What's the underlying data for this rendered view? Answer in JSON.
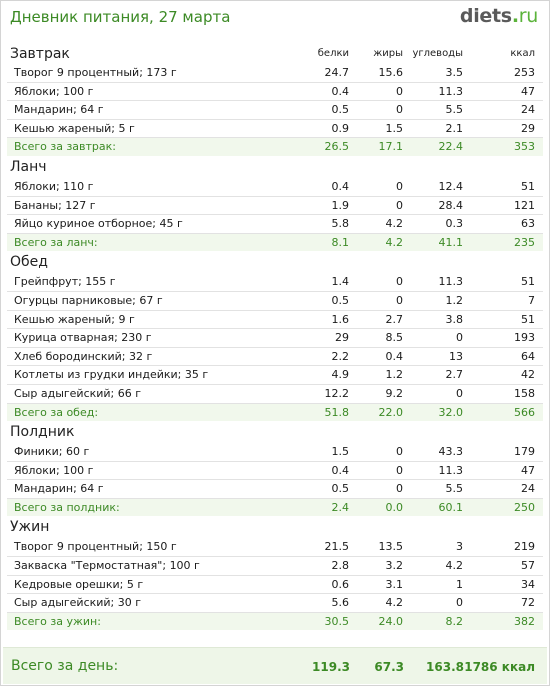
{
  "header": {
    "title": "Дневник питания, 27 марта",
    "logo_main": "diets",
    "logo_dot": ".",
    "logo_tld": "ru"
  },
  "columns": {
    "protein": "белки",
    "fat": "жиры",
    "carbs": "углеводы",
    "kcal": "ккал"
  },
  "meals": [
    {
      "title": "Завтрак",
      "items": [
        {
          "name": "Творог 9 процентный; 173 г",
          "protein": "24.7",
          "fat": "15.6",
          "carbs": "3.5",
          "kcal": "253"
        },
        {
          "name": "Яблоки; 100 г",
          "protein": "0.4",
          "fat": "0",
          "carbs": "11.3",
          "kcal": "47"
        },
        {
          "name": "Мандарин; 64 г",
          "protein": "0.5",
          "fat": "0",
          "carbs": "5.5",
          "kcal": "24"
        },
        {
          "name": "Кешью жареный; 5 г",
          "protein": "0.9",
          "fat": "1.5",
          "carbs": "2.1",
          "kcal": "29"
        }
      ],
      "total": {
        "name": "Всего за завтрак:",
        "protein": "26.5",
        "fat": "17.1",
        "carbs": "22.4",
        "kcal": "353"
      }
    },
    {
      "title": "Ланч",
      "items": [
        {
          "name": "Яблоки; 110 г",
          "protein": "0.4",
          "fat": "0",
          "carbs": "12.4",
          "kcal": "51"
        },
        {
          "name": "Бананы; 127 г",
          "protein": "1.9",
          "fat": "0",
          "carbs": "28.4",
          "kcal": "121"
        },
        {
          "name": "Яйцо куриное отборное; 45 г",
          "protein": "5.8",
          "fat": "4.2",
          "carbs": "0.3",
          "kcal": "63"
        }
      ],
      "total": {
        "name": "Всего за ланч:",
        "protein": "8.1",
        "fat": "4.2",
        "carbs": "41.1",
        "kcal": "235"
      }
    },
    {
      "title": "Обед",
      "items": [
        {
          "name": "Грейпфрут; 155 г",
          "protein": "1.4",
          "fat": "0",
          "carbs": "11.3",
          "kcal": "51"
        },
        {
          "name": "Огурцы парниковые; 67 г",
          "protein": "0.5",
          "fat": "0",
          "carbs": "1.2",
          "kcal": "7"
        },
        {
          "name": "Кешью жареный; 9 г",
          "protein": "1.6",
          "fat": "2.7",
          "carbs": "3.8",
          "kcal": "51"
        },
        {
          "name": "Курица отварная; 230 г",
          "protein": "29",
          "fat": "8.5",
          "carbs": "0",
          "kcal": "193"
        },
        {
          "name": "Хлеб бородинский; 32 г",
          "protein": "2.2",
          "fat": "0.4",
          "carbs": "13",
          "kcal": "64"
        },
        {
          "name": "Котлеты из грудки индейки; 35 г",
          "protein": "4.9",
          "fat": "1.2",
          "carbs": "2.7",
          "kcal": "42"
        },
        {
          "name": "Сыр адыгейский; 66 г",
          "protein": "12.2",
          "fat": "9.2",
          "carbs": "0",
          "kcal": "158"
        }
      ],
      "total": {
        "name": "Всего за обед:",
        "protein": "51.8",
        "fat": "22.0",
        "carbs": "32.0",
        "kcal": "566"
      }
    },
    {
      "title": "Полдник",
      "items": [
        {
          "name": "Финики; 60 г",
          "protein": "1.5",
          "fat": "0",
          "carbs": "43.3",
          "kcal": "179"
        },
        {
          "name": "Яблоки; 100 г",
          "protein": "0.4",
          "fat": "0",
          "carbs": "11.3",
          "kcal": "47"
        },
        {
          "name": "Мандарин; 64 г",
          "protein": "0.5",
          "fat": "0",
          "carbs": "5.5",
          "kcal": "24"
        }
      ],
      "total": {
        "name": "Всего за полдник:",
        "protein": "2.4",
        "fat": "0.0",
        "carbs": "60.1",
        "kcal": "250"
      }
    },
    {
      "title": "Ужин",
      "items": [
        {
          "name": "Творог 9 процентный; 150 г",
          "protein": "21.5",
          "fat": "13.5",
          "carbs": "3",
          "kcal": "219"
        },
        {
          "name": "Закваска \"Термостатная\"; 100 г",
          "protein": "2.8",
          "fat": "3.2",
          "carbs": "4.2",
          "kcal": "57"
        },
        {
          "name": "Кедровые орешки; 5 г",
          "protein": "0.6",
          "fat": "3.1",
          "carbs": "1",
          "kcal": "34"
        },
        {
          "name": "Сыр адыгейский; 30 г",
          "protein": "5.6",
          "fat": "4.2",
          "carbs": "0",
          "kcal": "72"
        }
      ],
      "total": {
        "name": "Всего за ужин:",
        "protein": "30.5",
        "fat": "24.0",
        "carbs": "8.2",
        "kcal": "382"
      }
    }
  ],
  "day_total": {
    "label": "Всего за день:",
    "protein": "119.3",
    "fat": "67.3",
    "carbs": "163.8",
    "kcal": "1786 ккал"
  }
}
